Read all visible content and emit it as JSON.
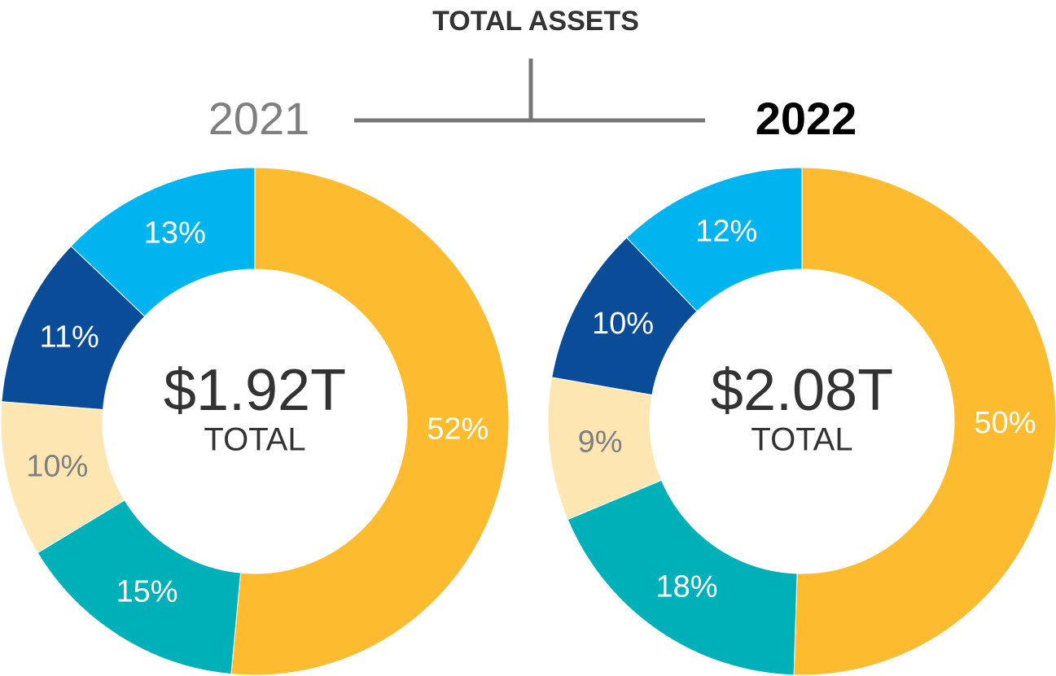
{
  "title": "TOTAL ASSETS",
  "chart_data": [
    {
      "type": "donut",
      "title": "2021",
      "title_color": "#7f7f7f",
      "title_bold": false,
      "center_text": "$1.92T",
      "center_subtitle": "TOTAL",
      "values": [
        52,
        15,
        10,
        11,
        13
      ],
      "value_labels": [
        "52%",
        "15%",
        "10%",
        "11%",
        "13%"
      ],
      "colors": [
        "#fdbb30",
        "#00b0b9",
        "#fde6b2",
        "#0a4c97",
        "#00b5ef"
      ],
      "label_colors": [
        "#ffffff",
        "#ffffff",
        "#7f7f7f",
        "#ffffff",
        "#ffffff"
      ]
    },
    {
      "type": "donut",
      "title": "2022",
      "title_color": "#000000",
      "title_bold": true,
      "center_text": "$2.08T",
      "center_subtitle": "TOTAL",
      "values": [
        50,
        18,
        9,
        10,
        12
      ],
      "value_labels": [
        "50%",
        "18%",
        "9%",
        "10%",
        "12%"
      ],
      "colors": [
        "#fdbb30",
        "#00b0b9",
        "#fde6b2",
        "#0a4c97",
        "#00b5ef"
      ],
      "label_colors": [
        "#ffffff",
        "#ffffff",
        "#7f7f7f",
        "#ffffff",
        "#ffffff"
      ]
    }
  ]
}
